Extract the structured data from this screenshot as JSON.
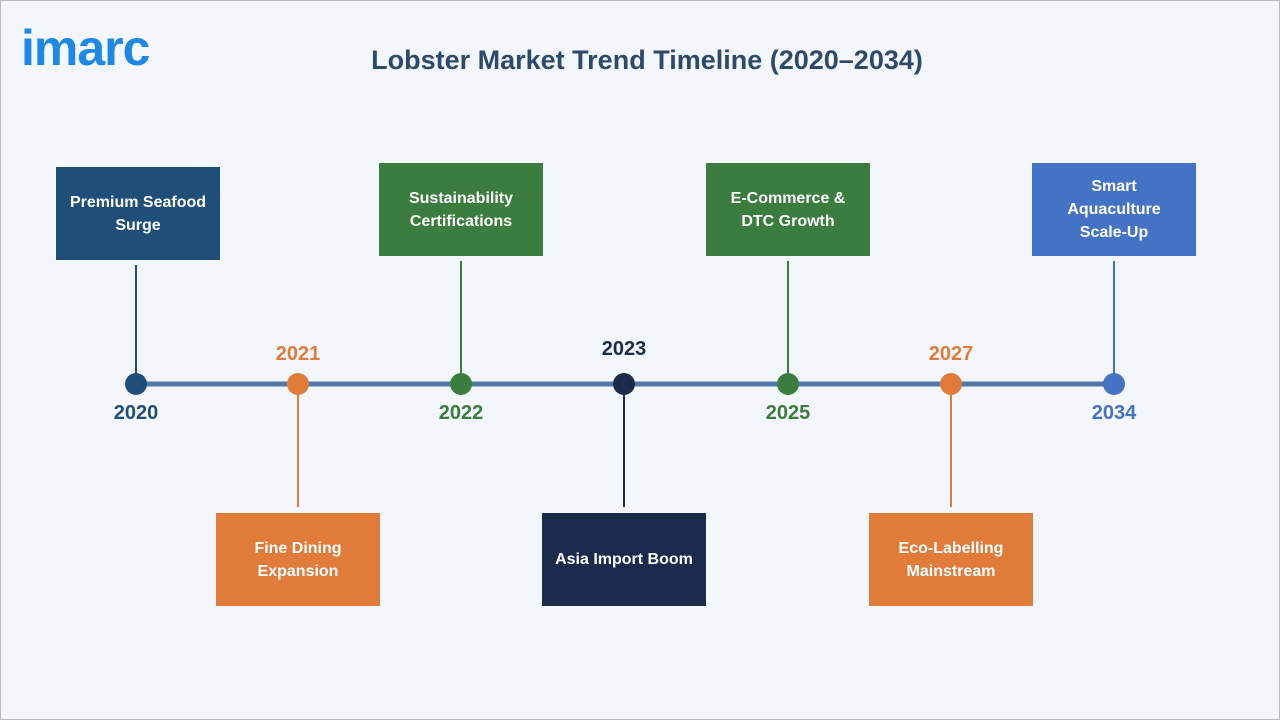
{
  "logo": "imarc",
  "title": "Lobster Market Trend Timeline (2020–2034)",
  "events": [
    {
      "year": "2020",
      "label": "Premium Seafood Surge",
      "color": "#1f4e79"
    },
    {
      "year": "2021",
      "label": "Fine Dining Expansion",
      "color": "#e07b39"
    },
    {
      "year": "2022",
      "label": "Sustainability Certifications",
      "color": "#3b7d3e"
    },
    {
      "year": "2023",
      "label": "Asia Import Boom",
      "color": "#1a2b4c"
    },
    {
      "year": "2025",
      "label": "E-Commerce & DTC Growth",
      "color": "#3b7d3e"
    },
    {
      "year": "2027",
      "label": "Eco-Labelling Mainstream",
      "color": "#e07b39"
    },
    {
      "year": "2034",
      "label": "Smart Aquaculture Scale-Up",
      "color": "#4472c4"
    }
  ]
}
